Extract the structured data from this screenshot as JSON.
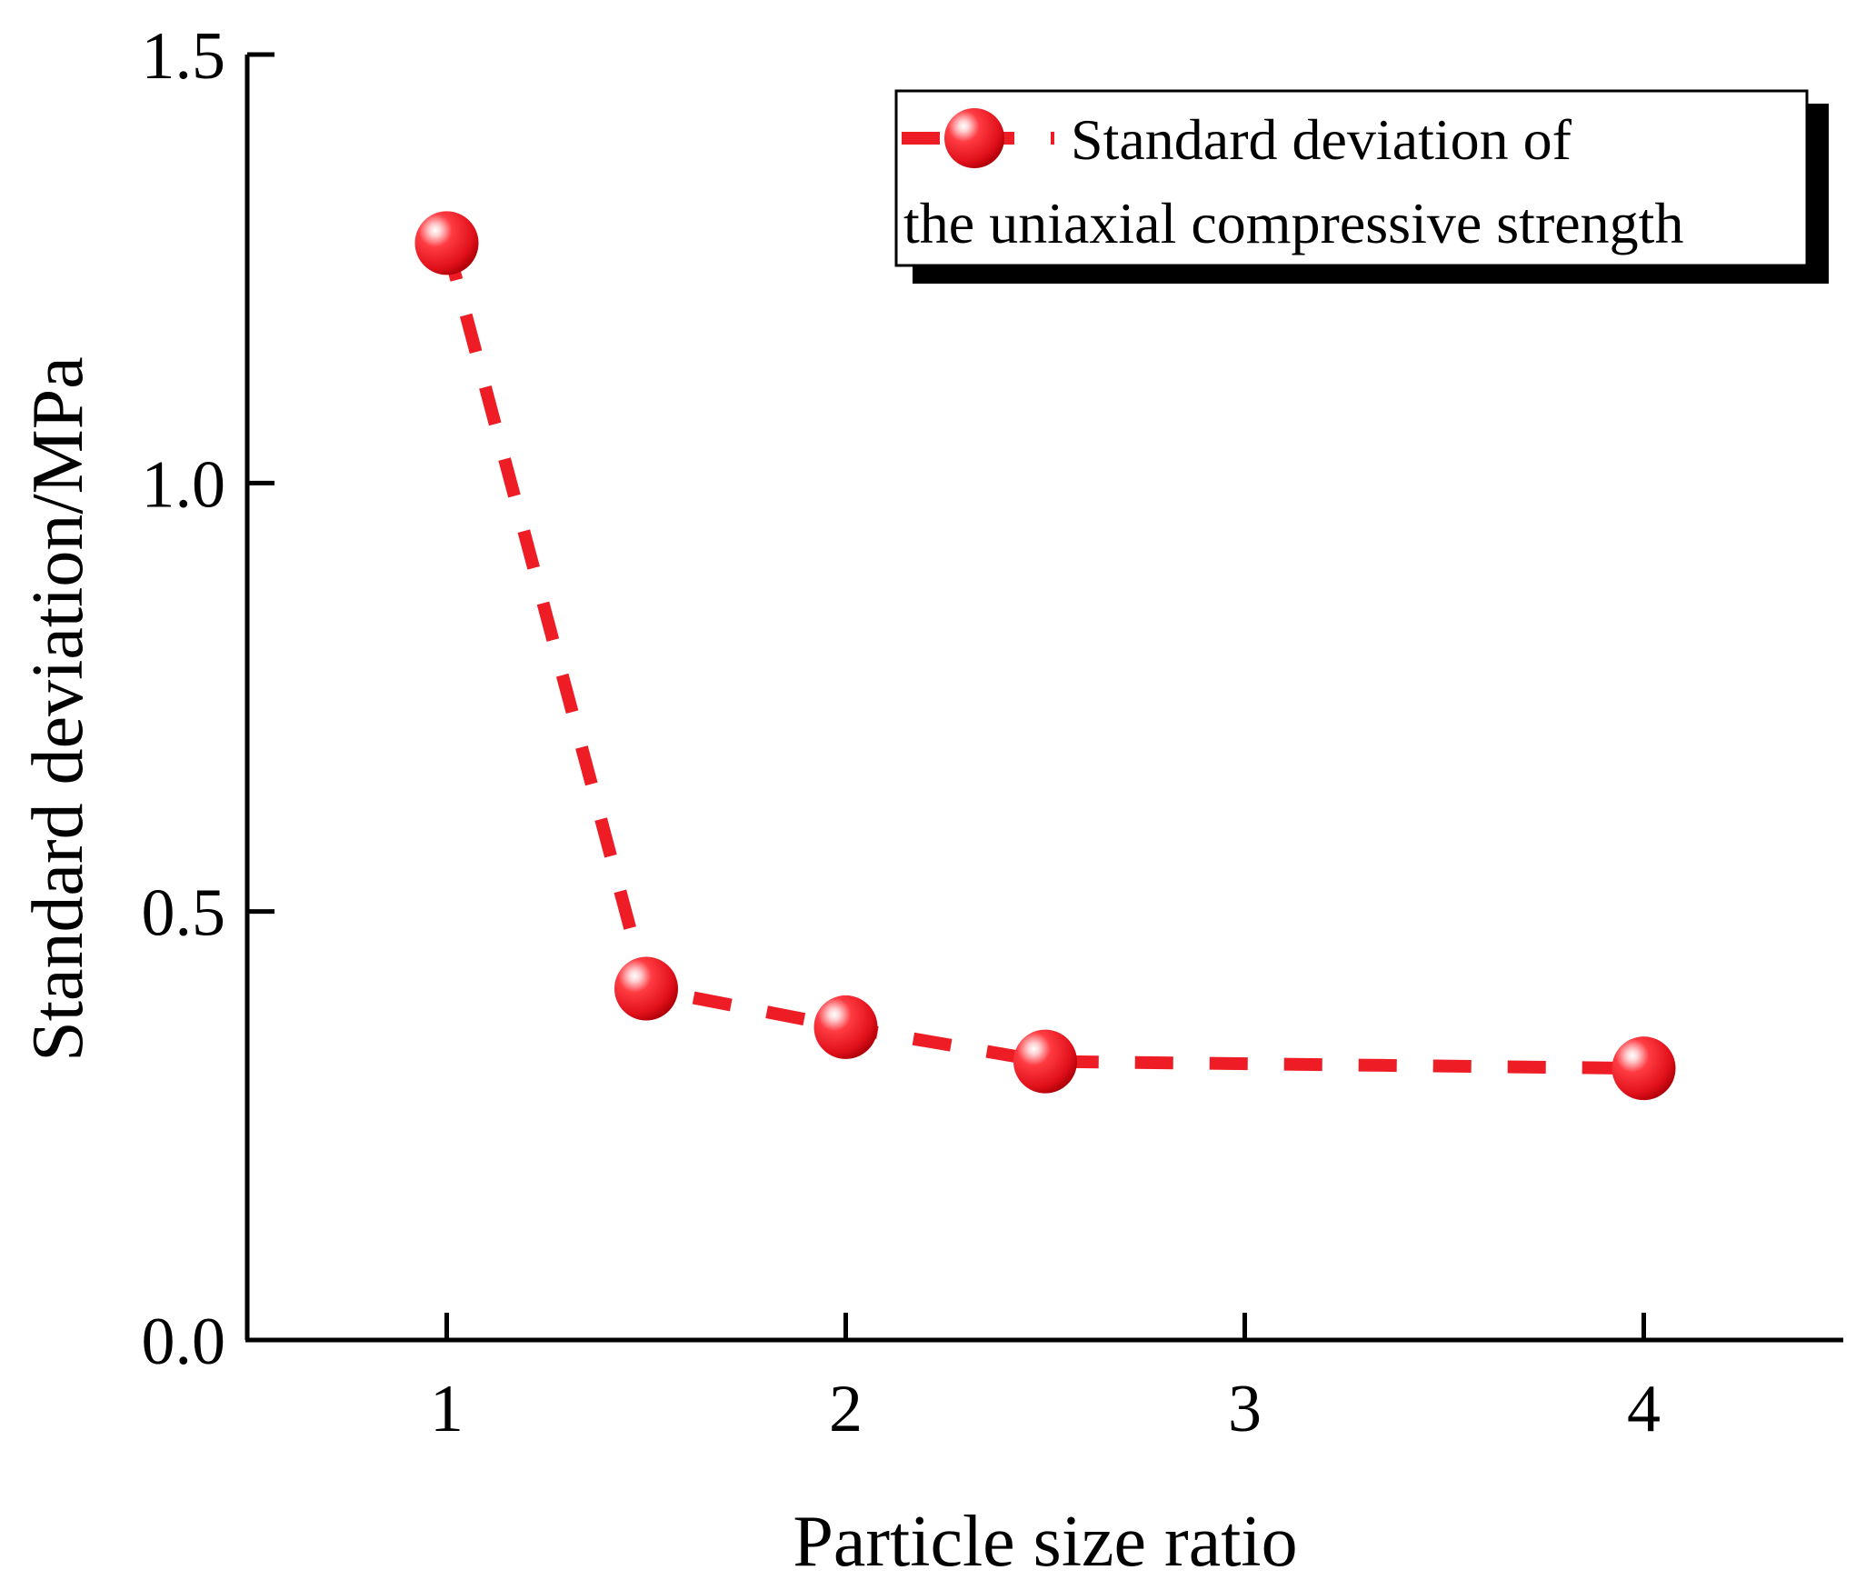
{
  "chart_data": {
    "type": "line",
    "title": "",
    "xlabel": "Particle size ratio",
    "ylabel": "Standard deviation/MPa",
    "xlim": [
      0.5,
      4.5
    ],
    "ylim": [
      0.0,
      1.5
    ],
    "xticks": [
      1,
      2,
      3,
      4
    ],
    "xtick_labels": [
      "1",
      "2",
      "3",
      "4"
    ],
    "yticks": [
      0.0,
      0.5,
      1.0,
      1.5
    ],
    "ytick_labels": [
      "0.0",
      "0.5",
      "1.0",
      "1.5"
    ],
    "grid": false,
    "legend_position": "top-right",
    "series": [
      {
        "name": "Standard deviation of the uniaxial compressive strength",
        "legend_lines": [
          "Standard deviation of",
          "the uniaxial compressive strength"
        ],
        "line_style": "dashed",
        "marker": "sphere",
        "color": "#ee1c24",
        "x": [
          1,
          1.5,
          2,
          2.5,
          4
        ],
        "values": [
          1.28,
          0.41,
          0.365,
          0.325,
          0.317
        ]
      }
    ]
  }
}
